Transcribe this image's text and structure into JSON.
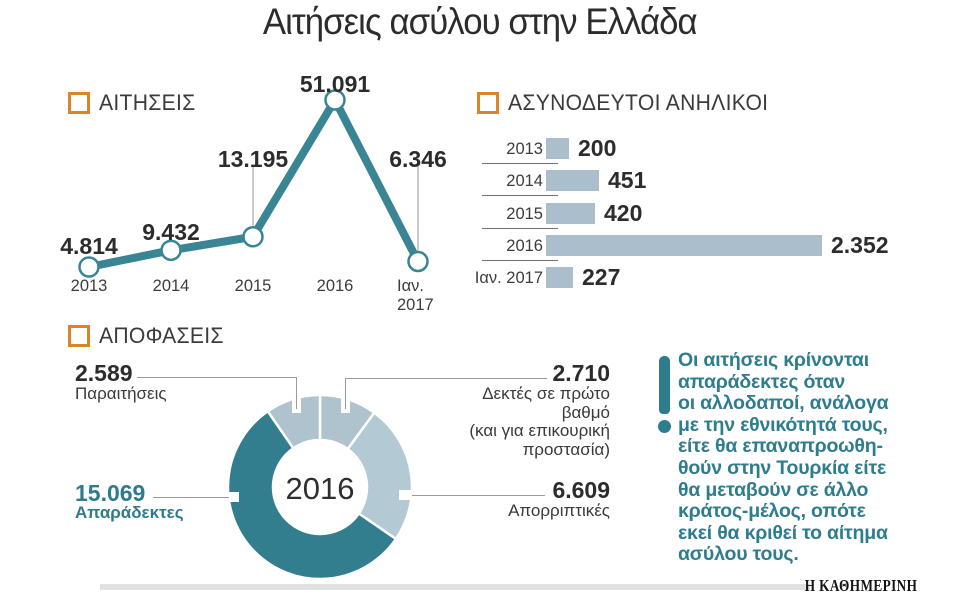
{
  "title": "Αιτήσεις ασύλου στην Ελλάδα",
  "colors": {
    "teal": "#35808f",
    "light_blue": "#aabfcb",
    "orange_accent": "#d9862a",
    "leader_gray": "#9a9a9a",
    "text_dark": "#2c2c2c"
  },
  "chart_data": [
    {
      "id": "applications",
      "type": "line",
      "title": "ΑΙΤΗΣΕΙΣ",
      "categories": [
        "2013",
        "2014",
        "2015",
        "2016",
        "Ιαν. 2017"
      ],
      "values": [
        4814,
        9432,
        13195,
        51091,
        6346
      ],
      "value_labels": [
        "4.814",
        "9.432",
        "13.195",
        "51.091",
        "6.346"
      ],
      "ylim": [
        4814,
        51091
      ],
      "grid": false,
      "line_color": "#3a8593",
      "marker": "open-circle"
    },
    {
      "id": "unaccompanied-minors",
      "type": "bar",
      "orientation": "horizontal",
      "title": "ΑΣΥΝΟΔΕΥΤΟΙ ΑΝΗΛΙΚΟΙ",
      "categories": [
        "2013",
        "2014",
        "2015",
        "2016",
        "Ιαν. 2017"
      ],
      "values": [
        200,
        451,
        420,
        2352,
        227
      ],
      "value_labels": [
        "200",
        "451",
        "420",
        "2.352",
        "227"
      ],
      "xlim": [
        0,
        2352
      ],
      "bar_color": "#aabfcb"
    },
    {
      "id": "decisions",
      "type": "pie",
      "title": "ΑΠΟΦΑΣΕΙΣ",
      "center_label": "2016",
      "donut": true,
      "start_angle_deg": 0,
      "slices": [
        {
          "label": "Δεκτές σε πρώτο βαθμό (και για επικουρική προστασία)",
          "caption_display": "Δεκτές σε πρώτο βαθμό\n(και για επικουρική\nπροστασία)",
          "value": 2710,
          "display": "2.710",
          "color": "#aec3cd"
        },
        {
          "label": "Απορριπτικές",
          "value": 6609,
          "display": "6.609",
          "color": "#b3c9d4"
        },
        {
          "label": "Απαράδεκτες",
          "value": 15069,
          "display": "15.069",
          "color": "#337e8e"
        },
        {
          "label": "Παραιτήσεις",
          "value": 2589,
          "display": "2.589",
          "color": "#aec3cd"
        }
      ]
    }
  ],
  "note": {
    "text": "Οι αιτήσεις κρίνονται\nαπαράδεκτες όταν\nοι αλλοδαποί, ανάλογα\nμε την εθνικότητά τους,\nείτε θα επαναπροωθη-\nθούν στην Τουρκία είτε\nθα μεταβούν σε άλλο\nκράτος-μέλος, οπότε\nεκεί θα κριθεί το αίτημα\nασύλου τους."
  },
  "footer": {
    "brand": "Η ΚΑΘΗΜΕΡΙΝΗ"
  }
}
